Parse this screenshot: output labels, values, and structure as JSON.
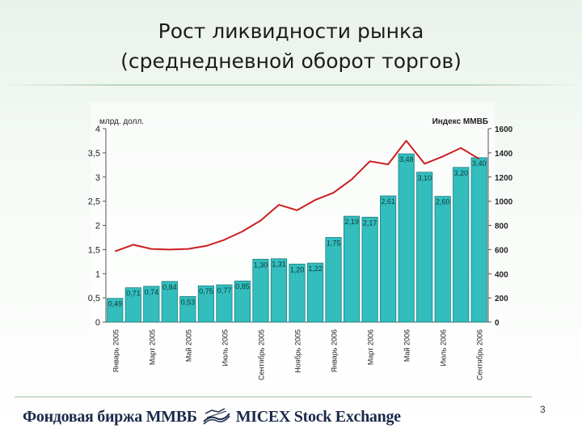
{
  "header": {
    "title_line1": "Рост ликвидности рынка",
    "title_line2": "(среднедневной оборот торгов)"
  },
  "chart_data": {
    "type": "bar",
    "categories": [
      "Январь 2005",
      "",
      "Март 2005",
      "",
      "Май 2005",
      "",
      "Июль 2005",
      "",
      "Сентябрь 2005",
      "",
      "Ноябрь 2005",
      "",
      "Январь 2006",
      "",
      "Март 2006",
      "",
      "Май 2006",
      "",
      "Июль 2006",
      "",
      "Сентябрь 2006"
    ],
    "series": [
      {
        "values": [
          0.49,
          0.71,
          0.74,
          0.84,
          0.53,
          0.75,
          0.77,
          0.85,
          1.3,
          1.31,
          1.2,
          1.22,
          1.75,
          2.19,
          2.17,
          2.61,
          3.48,
          3.1,
          2.6,
          3.2,
          3.4
        ],
        "labels": [
          "0,49",
          "0,71",
          "0,74",
          "0,84",
          "0,53",
          "0,75",
          "0,77",
          "0,85",
          "1,30",
          "1,31",
          "1,20",
          "1,22",
          "1,75",
          "2,19",
          "2,17",
          "2,61",
          "3,48",
          "3,10",
          "2,60",
          "3,20",
          "3,40"
        ],
        "color": "#33bdbd"
      },
      {
        "values": [
          585,
          640,
          605,
          600,
          605,
          630,
          680,
          750,
          840,
          970,
          925,
          1010,
          1070,
          1180,
          1330,
          1305,
          1500,
          1310,
          1370,
          1440,
          1350
        ],
        "color": "#cc1f1f"
      }
    ],
    "left_axis_title": "млрд. долл.",
    "right_axis_title": "Индекс ММВБ",
    "ylim_left": [
      0,
      4
    ],
    "ylim_right": [
      0,
      1600
    ],
    "left_ticks": [
      "0",
      "0,5",
      "1",
      "1,5",
      "2",
      "2,5",
      "3",
      "3,5",
      "4"
    ],
    "right_ticks": [
      "0",
      "200",
      "400",
      "600",
      "800",
      "1000",
      "1200",
      "1400",
      "1600"
    ],
    "grid": "none"
  },
  "footer": {
    "logo_ru": "Фондовая биржа ММВБ",
    "logo_en": "MICEX Stock Exchange",
    "page_number": "3"
  },
  "colors": {
    "bar": "#33bdbd",
    "line": "#cc1f1f",
    "axis": "#555555"
  }
}
